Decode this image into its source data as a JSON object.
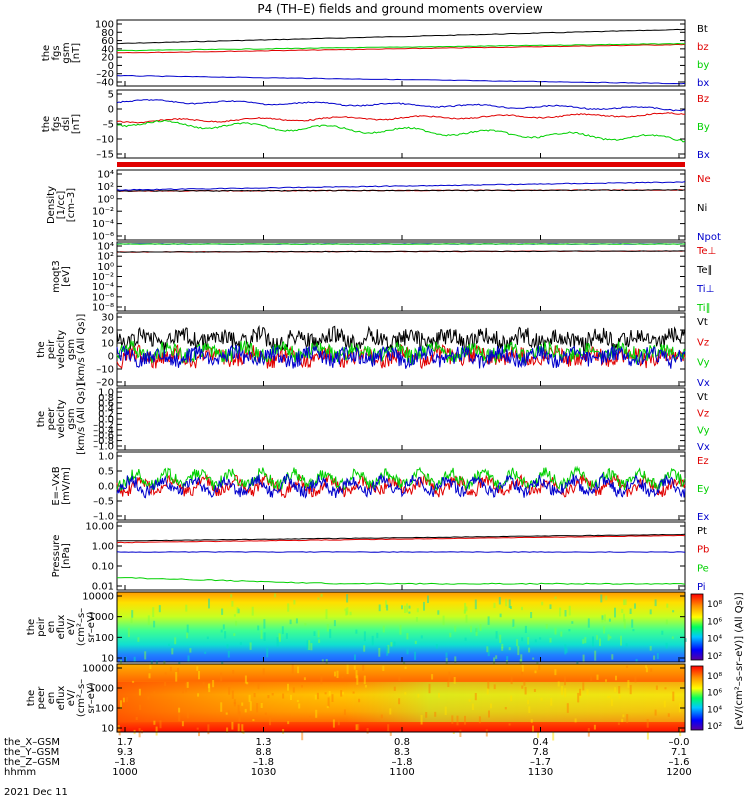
{
  "title": "P4 (TH–E) fields and ground moments overview",
  "colors": {
    "black": "#000000",
    "red": "#e00000",
    "green": "#00d000",
    "blue": "#0000cc"
  },
  "chart_data": {
    "type": "line",
    "x_axis": {
      "rows": [
        {
          "label": "the_X–GSM",
          "values": [
            "1.7",
            "1.3",
            "0.8",
            "0.4",
            "–0.0"
          ]
        },
        {
          "label": "the_Y–GSM",
          "values": [
            "9.3",
            "8.8",
            "8.3",
            "7.8",
            "7.1"
          ]
        },
        {
          "label": "the_Z–GSM",
          "values": [
            "–1.8",
            "–1.8",
            "–1.8",
            "–1.7",
            "–1.6"
          ]
        },
        {
          "label": "hhmm",
          "values": [
            "1000",
            "1030",
            "1100",
            "1130",
            "1200"
          ]
        }
      ],
      "date": "2021 Dec 11"
    },
    "panels": [
      {
        "id": "fgs-gsm",
        "ylabel": [
          "the",
          "fgs",
          "gsm",
          "[nT]"
        ],
        "ylim": [
          -40,
          100
        ],
        "yticks": [
          "100",
          "80",
          "60",
          "40",
          "20",
          "0",
          "–20",
          "–40"
        ],
        "series": [
          {
            "name": "Bt",
            "color": "black",
            "values": [
              50,
              80
            ]
          },
          {
            "name": "bz",
            "color": "red",
            "values": [
              30,
              48
            ]
          },
          {
            "name": "by",
            "color": "green",
            "values": [
              35,
              50
            ]
          },
          {
            "name": "bx",
            "color": "blue",
            "values": [
              -18,
              -35
            ]
          }
        ]
      },
      {
        "id": "fgs-dsl",
        "ylabel": [
          "the",
          "fgs",
          "dsl",
          "[nT]"
        ],
        "ylim": [
          -18,
          7
        ],
        "yticks": [
          "5",
          "0",
          "–5",
          "–10",
          "–15"
        ],
        "series": [
          {
            "name": "Bz",
            "color": "red",
            "values": [
              -4.5,
              -2
            ]
          },
          {
            "name": "By",
            "color": "green",
            "values": [
              -5,
              -11
            ]
          },
          {
            "name": "Bx",
            "color": "blue",
            "values": [
              3,
              0
            ]
          }
        ]
      },
      {
        "id": "density",
        "ylabel": [
          "Density",
          "[1/cc]",
          "[cm–3]"
        ],
        "yticks": [
          "10⁴",
          "10²",
          "10⁰",
          "10⁻²",
          "10⁻⁴",
          "10⁻⁶"
        ],
        "series": [
          {
            "name": "Ne",
            "color": "red",
            "values": [
              0.4,
              0.6
            ]
          },
          {
            "name": "Ni",
            "color": "black",
            "values": [
              0.5,
              0.7
            ]
          },
          {
            "name": "Npot",
            "color": "blue",
            "values": [
              0.5,
              3
            ]
          }
        ]
      },
      {
        "id": "temperature",
        "ylabel": [
          "moqt3",
          "[eV]"
        ],
        "yticks": [
          "10⁴",
          "10²",
          "10⁰",
          "10⁻²",
          "10⁻⁴",
          "10⁻⁶",
          "10⁻⁸"
        ],
        "series": [
          {
            "name": "Te⊥",
            "color": "red",
            "values": [
              300,
              400
            ]
          },
          {
            "name": "Te∥",
            "color": "black",
            "values": [
              300,
              400
            ]
          },
          {
            "name": "Ti⊥",
            "color": "blue",
            "values": [
              3000,
              3000
            ]
          },
          {
            "name": "Ti∥",
            "color": "green",
            "values": [
              3000,
              3000
            ]
          }
        ]
      },
      {
        "id": "peir-velocity",
        "ylabel": [
          "the",
          "peir",
          "velocity",
          "gsm",
          "[km/s (All Qs)]"
        ],
        "ylim": [
          -20,
          30
        ],
        "yticks": [
          "30",
          "20",
          "10",
          "0",
          "–10",
          "–20"
        ],
        "series": [
          {
            "name": "Vt",
            "color": "black",
            "values": [
              12,
              12
            ]
          },
          {
            "name": "Vz",
            "color": "red",
            "values": [
              0,
              0
            ]
          },
          {
            "name": "Vy",
            "color": "green",
            "values": [
              3,
              3
            ]
          },
          {
            "name": "Vx",
            "color": "blue",
            "values": [
              0,
              0
            ]
          }
        ]
      },
      {
        "id": "peer-velocity",
        "ylabel": [
          "the",
          "peer",
          "velocity",
          "gsm",
          "[km/s (All Qs)]"
        ],
        "ylim": [
          -1,
          1
        ],
        "yticks": [
          "1.0",
          "0.8",
          "0.6",
          "0.4",
          "0.2",
          "0.0",
          "–0.2",
          "–0.4",
          "–0.6",
          "–0.8",
          "–1.0"
        ],
        "series": [
          {
            "name": "Vt",
            "color": "black",
            "values": []
          },
          {
            "name": "Vz",
            "color": "red",
            "values": []
          },
          {
            "name": "Vy",
            "color": "green",
            "values": []
          },
          {
            "name": "Vx",
            "color": "blue",
            "values": []
          }
        ]
      },
      {
        "id": "efield",
        "ylabel": [
          "E=–VxB",
          "[mV/m]"
        ],
        "ylim": [
          -1.0,
          1.0
        ],
        "yticks": [
          "1.0",
          "0.5",
          "0.0",
          "–0.5",
          "–1.0"
        ],
        "series": [
          {
            "name": "Ez",
            "color": "red",
            "values": [
              0,
              0
            ]
          },
          {
            "name": "Ey",
            "color": "green",
            "values": [
              0.2,
              0.2
            ]
          },
          {
            "name": "Ex",
            "color": "blue",
            "values": [
              0,
              0
            ]
          }
        ]
      },
      {
        "id": "pressure",
        "ylabel": [
          "Pressure",
          "[nPa]"
        ],
        "ylim": [
          0.005,
          10
        ],
        "yticks": [
          "10.00",
          "1.00",
          "0.10",
          "0.01"
        ],
        "series": [
          {
            "name": "Pt",
            "color": "black",
            "values": [
              1.2,
              2.5
            ]
          },
          {
            "name": "Pb",
            "color": "red",
            "values": [
              1.0,
              2.2
            ]
          },
          {
            "name": "Pe",
            "color": "green",
            "values": [
              0.02,
              0.01
            ]
          },
          {
            "name": "Pi",
            "color": "blue",
            "values": [
              0.35,
              0.35
            ]
          }
        ]
      },
      {
        "id": "peir-eflux",
        "type": "heatmap",
        "ylabel": [
          "the",
          "peir",
          "en",
          "eflux",
          "eV/",
          "(cm²–s–",
          "sr–eV)"
        ],
        "yticks": [
          "10000",
          "1000",
          "100",
          "10"
        ],
        "colorbar": {
          "ticks": [
            "10⁸",
            "10⁶",
            "10⁴",
            "10²"
          ],
          "label": "[eV/(cm²–s–sr–eV)] (All Qs)]"
        }
      },
      {
        "id": "peer-eflux",
        "type": "heatmap",
        "ylabel": [
          "the",
          "peer",
          "en",
          "eflux",
          "eV/",
          "(cm²–s–",
          "sr–eV)"
        ],
        "yticks": [
          "10000",
          "1000",
          "100",
          "10"
        ],
        "colorbar": {
          "ticks": [
            "10⁸",
            "10⁶",
            "10⁴",
            "10²"
          ],
          "label": "[eV/(cm²–s–sr–eV)] (All Qs)]"
        }
      }
    ]
  }
}
